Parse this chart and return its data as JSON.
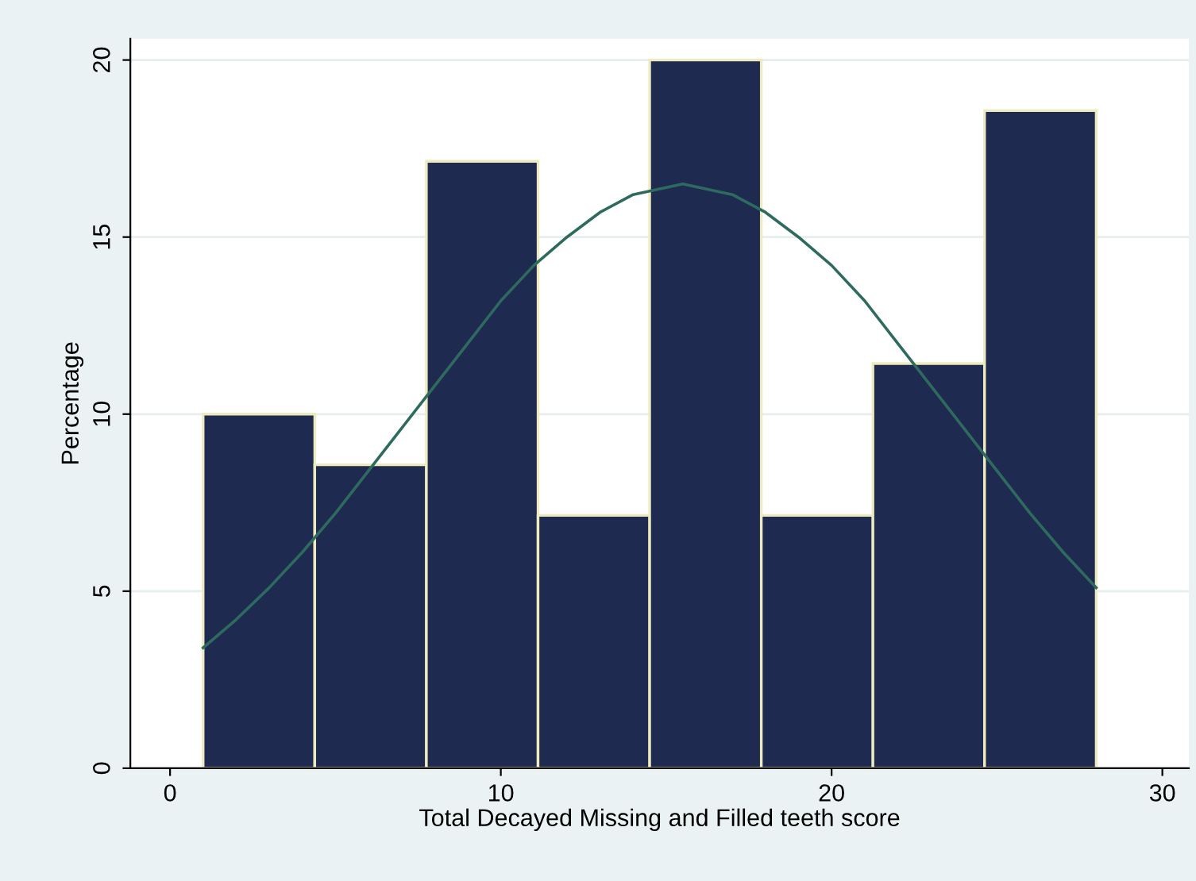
{
  "chart_data": {
    "type": "histogram",
    "xlabel": "Total Decayed Missing and Filled teeth score",
    "ylabel": "Percentage",
    "bins": [
      1,
      4.375,
      7.75,
      11.125,
      14.5,
      17.875,
      21.25,
      24.625,
      28
    ],
    "series": [
      {
        "color": "#1f2a50",
        "values": [
          10,
          8.57,
          17.14,
          7.14,
          20,
          7.14,
          11.43,
          18.57
        ]
      },
      {
        "type": "line",
        "color": "#2e6b5e",
        "x": [
          1,
          2,
          3,
          4,
          5,
          6,
          7,
          8,
          9,
          10,
          11,
          12,
          13,
          14,
          15.5,
          17,
          18,
          19,
          20,
          21,
          22,
          23,
          24,
          25,
          26,
          27,
          28
        ],
        "values": [
          3.4,
          4.2,
          5.1,
          6.1,
          7.2,
          8.4,
          9.6,
          10.8,
          12.0,
          13.2,
          14.2,
          15.0,
          15.7,
          16.2,
          16.5,
          16.2,
          15.7,
          15.0,
          14.2,
          13.2,
          12.0,
          10.8,
          9.6,
          8.4,
          7.2,
          6.1,
          5.1
        ]
      }
    ],
    "xlim": [
      -1.2,
      30.8
    ],
    "xticks": [
      0,
      10,
      20,
      30
    ],
    "ylim": [
      0,
      20.6
    ],
    "yticks": [
      0,
      5,
      10,
      15,
      20
    ],
    "grid": "y",
    "legend": false
  }
}
